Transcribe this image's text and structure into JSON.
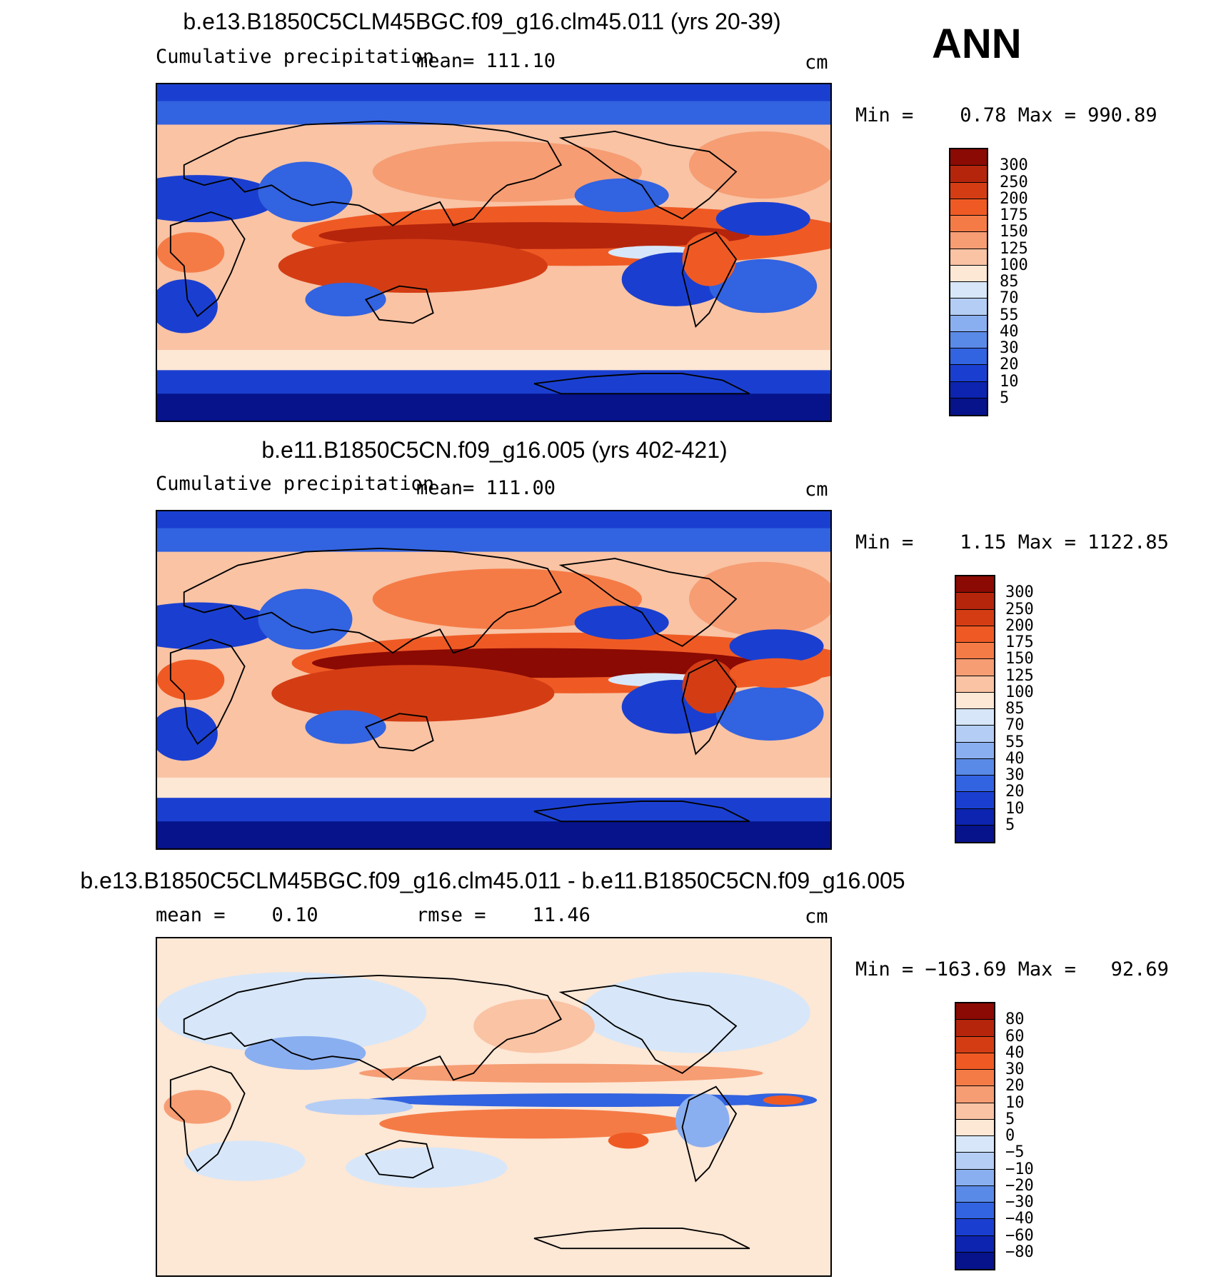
{
  "season": "ANN",
  "panels": [
    {
      "title": "b.e13.B1850C5CLM45BGC.f09_g16.clm45.011 (yrs 20-39)",
      "left_label": "Cumulative precipitation",
      "center_label": "mean= 111.10",
      "units": "cm",
      "minmax": "Min =    0.78 Max = 990.89",
      "levels": [
        "300",
        "250",
        "200",
        "175",
        "150",
        "125",
        "100",
        "85",
        "70",
        "55",
        "40",
        "30",
        "20",
        "10",
        "5"
      ],
      "colors": [
        "#8b0a04",
        "#b5250c",
        "#d43d14",
        "#ef5a24",
        "#f57b46",
        "#f69d73",
        "#f9c3a4",
        "#fde7d5",
        "#d7e7f9",
        "#b4cdf4",
        "#8aaff0",
        "#5a8ae8",
        "#3263e0",
        "#1a3fd0",
        "#0c24b0",
        "#06138a"
      ]
    },
    {
      "title": "b.e11.B1850C5CN.f09_g16.005 (yrs 402-421)",
      "left_label": "Cumulative precipitation",
      "center_label": "mean= 111.00",
      "units": "cm",
      "minmax": "Min =    1.15 Max = 1122.85",
      "levels": [
        "300",
        "250",
        "200",
        "175",
        "150",
        "125",
        "100",
        "85",
        "70",
        "55",
        "40",
        "30",
        "20",
        "10",
        "5"
      ],
      "colors": [
        "#8b0a04",
        "#b5250c",
        "#d43d14",
        "#ef5a24",
        "#f57b46",
        "#f69d73",
        "#f9c3a4",
        "#fde7d5",
        "#d7e7f9",
        "#b4cdf4",
        "#8aaff0",
        "#5a8ae8",
        "#3263e0",
        "#1a3fd0",
        "#0c24b0",
        "#06138a"
      ]
    },
    {
      "title": "b.e13.B1850C5CLM45BGC.f09_g16.clm45.011 - b.e11.B1850C5CN.f09_g16.005",
      "left_label": "mean =    0.10",
      "center_label": "rmse =    11.46",
      "units": "cm",
      "minmax": "Min = −163.69 Max =   92.69",
      "levels": [
        "80",
        "60",
        "40",
        "30",
        "20",
        "10",
        "5",
        "0",
        "−5",
        "−10",
        "−20",
        "−30",
        "−40",
        "−60",
        "−80"
      ],
      "colors": [
        "#8b0a04",
        "#b5250c",
        "#d43d14",
        "#ef5a24",
        "#f57b46",
        "#f69d73",
        "#f9c3a4",
        "#fde7d5",
        "#d7e7f9",
        "#b4cdf4",
        "#8aaff0",
        "#5a8ae8",
        "#3263e0",
        "#1a3fd0",
        "#0c24b0",
        "#06138a"
      ]
    }
  ]
}
